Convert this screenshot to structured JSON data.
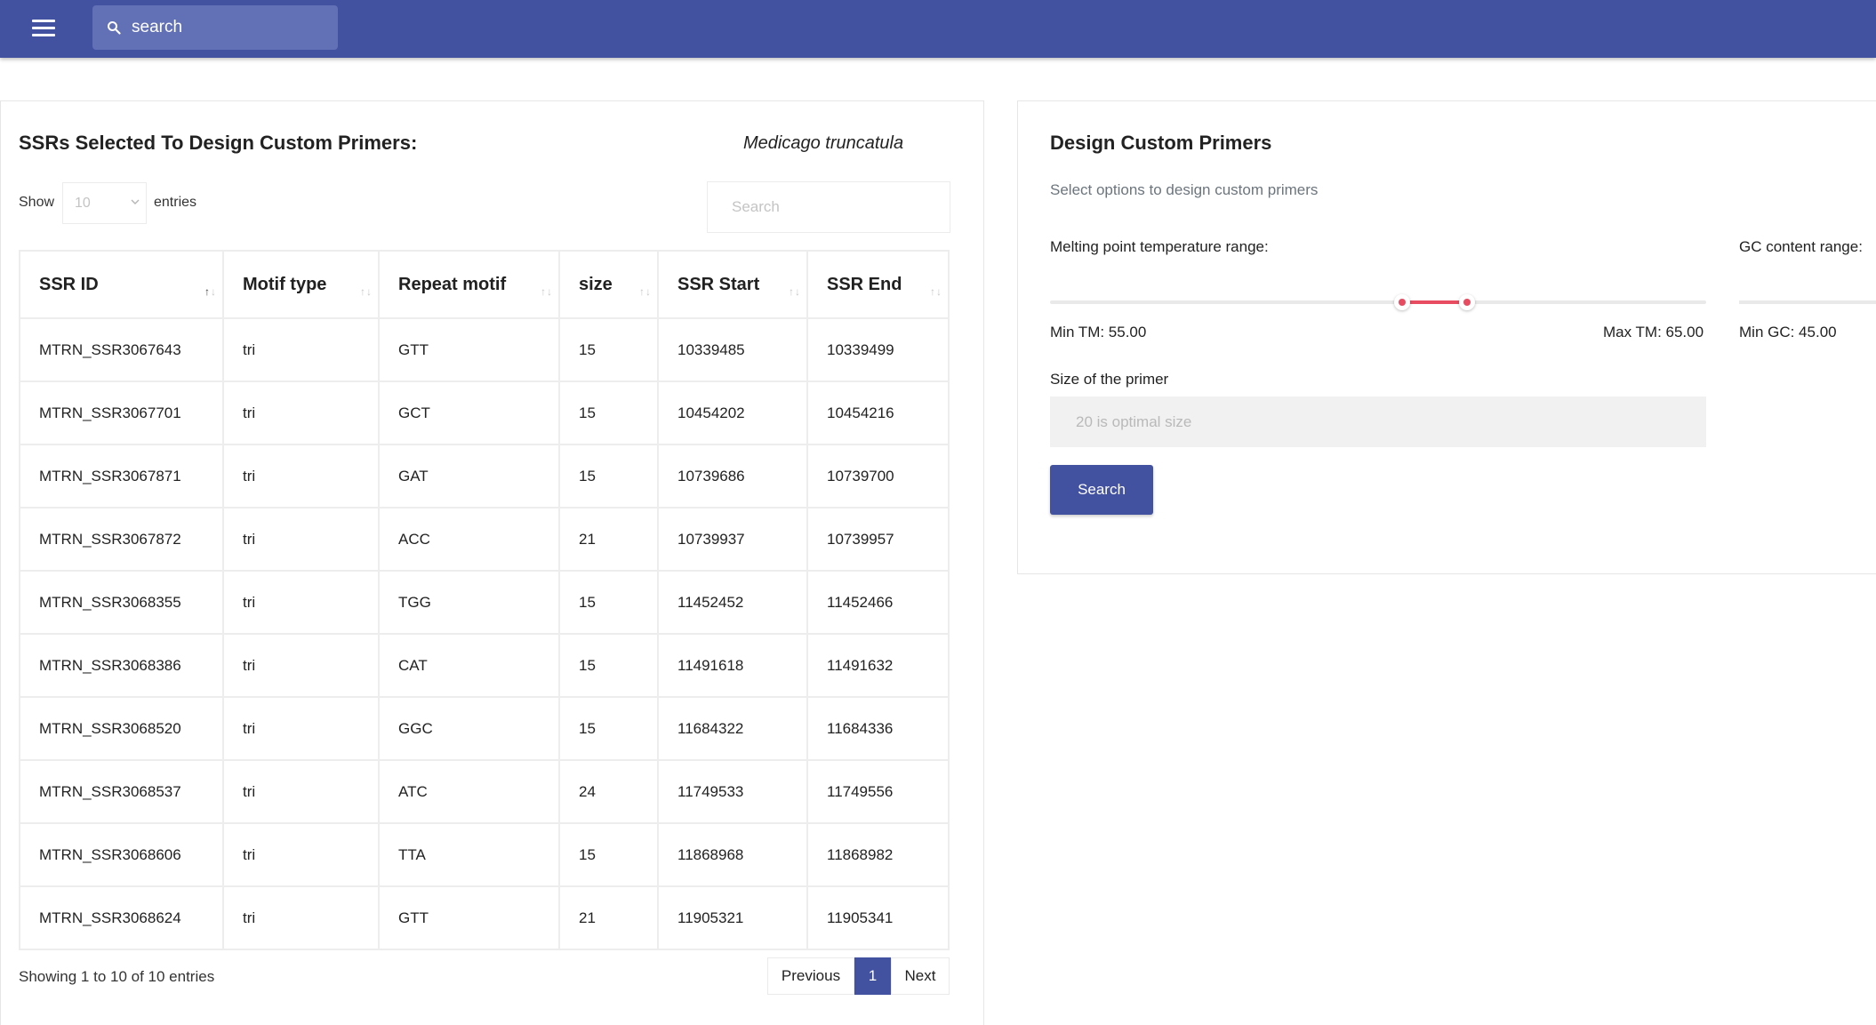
{
  "topbar": {
    "search_placeholder": "search",
    "colors": {
      "background": "#4351a1",
      "search_bg": "#6270b6"
    }
  },
  "left_panel": {
    "title": "SSRs Selected To Design Custom Primers:",
    "species": "Medicago truncatula",
    "show_label": "Show",
    "entries_value": "10",
    "entries_label": "entries",
    "search_placeholder": "Search",
    "columns": [
      "SSR ID",
      "Motif type",
      "Repeat motif",
      "size",
      "SSR Start",
      "SSR End"
    ],
    "sorted_column": "SSR ID",
    "sort_direction": "ascending",
    "rows": [
      [
        "MTRN_SSR3067643",
        "tri",
        "GTT",
        "15",
        "10339485",
        "10339499"
      ],
      [
        "MTRN_SSR3067701",
        "tri",
        "GCT",
        "15",
        "10454202",
        "10454216"
      ],
      [
        "MTRN_SSR3067871",
        "tri",
        "GAT",
        "15",
        "10739686",
        "10739700"
      ],
      [
        "MTRN_SSR3067872",
        "tri",
        "ACC",
        "21",
        "10739937",
        "10739957"
      ],
      [
        "MTRN_SSR3068355",
        "tri",
        "TGG",
        "15",
        "11452452",
        "11452466"
      ],
      [
        "MTRN_SSR3068386",
        "tri",
        "CAT",
        "15",
        "11491618",
        "11491632"
      ],
      [
        "MTRN_SSR3068520",
        "tri",
        "GGC",
        "15",
        "11684322",
        "11684336"
      ],
      [
        "MTRN_SSR3068537",
        "tri",
        "ATC",
        "24",
        "11749533",
        "11749556"
      ],
      [
        "MTRN_SSR3068606",
        "tri",
        "TTA",
        "15",
        "11868968",
        "11868982"
      ],
      [
        "MTRN_SSR3068624",
        "tri",
        "GTT",
        "21",
        "11905321",
        "11905341"
      ]
    ],
    "showing_text": "Showing 1 to 10 of 10 entries",
    "pagination": {
      "previous": "Previous",
      "current": "1",
      "next": "Next"
    }
  },
  "right_panel": {
    "title": "Design Custom Primers",
    "subtitle": "Select options to design custom primers",
    "tm_label": "Melting point temperature range:",
    "gc_label": "GC content range:",
    "tm_range": {
      "min": 55.0,
      "max": 65.0,
      "min_fraction": 0.536,
      "max_fraction": 0.636
    },
    "min_tm_text": "Min TM: 55.00",
    "max_tm_text": "Max TM: 65.00",
    "min_gc_text": "Min GC: 45.00",
    "size_label": "Size of the primer",
    "size_placeholder": "20 is optimal size",
    "search_button": "Search",
    "colors": {
      "accent": "#4351a1",
      "slider_range": "#e74c61"
    }
  }
}
